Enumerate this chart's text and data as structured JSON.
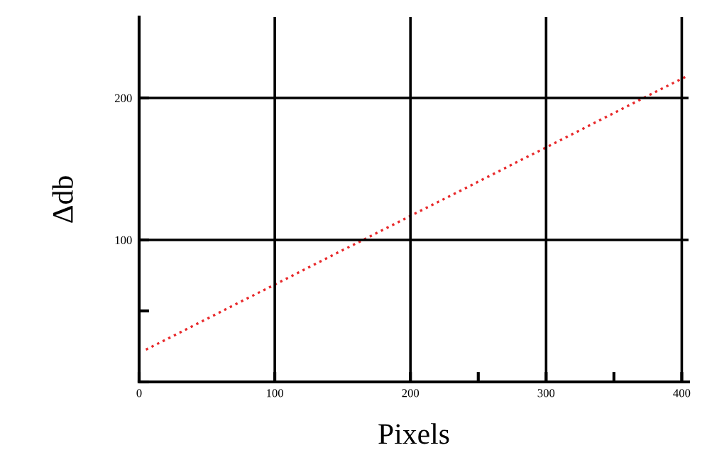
{
  "chart_data": {
    "type": "line",
    "xlabel": "Pixels",
    "ylabel": "Δdb",
    "x": [
      5,
      100,
      200,
      300,
      405
    ],
    "series": [
      {
        "color": "#e8282a",
        "values": [
          22.7,
          68.6,
          116.9,
          165.2,
          216.0
        ]
      }
    ],
    "line_style": "dotted",
    "marker": "none",
    "grid": true,
    "xlim": [
      0,
      405
    ],
    "xticks": [
      0,
      100,
      200,
      {
        "value": 250,
        "label": null
      },
      300,
      {
        "value": 350,
        "label": null
      },
      400
    ],
    "ylim": [
      0,
      257
    ],
    "yticks": [
      {
        "value": 0,
        "label": null
      },
      {
        "value": 50,
        "label": null
      },
      100,
      200
    ]
  }
}
